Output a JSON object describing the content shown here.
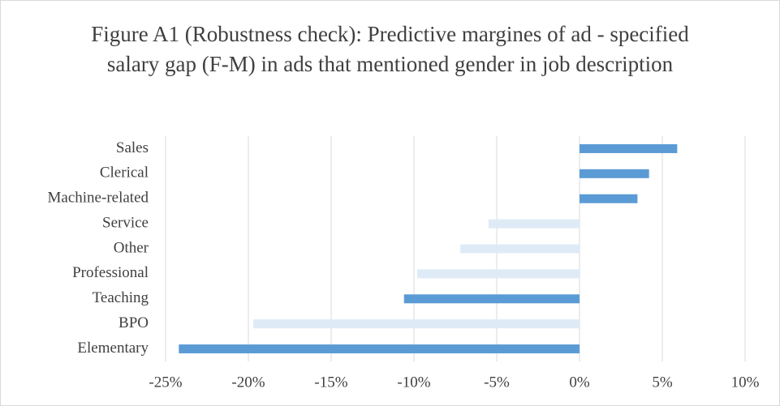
{
  "chart_data": {
    "type": "bar",
    "orientation": "horizontal",
    "title": "Figure A1 (Robustness check): Predictive margines of ad - specified salary gap (F-M) in ads that mentioned gender in job description",
    "categories": [
      "Sales",
      "Clerical",
      "Machine-related",
      "Service",
      "Other",
      "Professional",
      "Teaching",
      "BPO",
      "Elementary"
    ],
    "values": [
      5.9,
      4.2,
      3.5,
      -5.5,
      -7.2,
      -9.8,
      -10.6,
      -19.7,
      -24.2
    ],
    "colors": [
      "#5b9bd5",
      "#5b9bd5",
      "#5b9bd5",
      "#deebf7",
      "#deebf7",
      "#deebf7",
      "#5b9bd5",
      "#deebf7",
      "#5b9bd5"
    ],
    "xlim": [
      -25,
      10
    ],
    "xticks": [
      {
        "value": -25,
        "label": "-25%"
      },
      {
        "value": -20,
        "label": "-20%"
      },
      {
        "value": -15,
        "label": "-15%"
      },
      {
        "value": -10,
        "label": "-10%"
      },
      {
        "value": -5,
        "label": "-5%"
      },
      {
        "value": 0,
        "label": "0%"
      },
      {
        "value": 5,
        "label": "5%"
      },
      {
        "value": 10,
        "label": "10%"
      }
    ],
    "grid": true
  }
}
